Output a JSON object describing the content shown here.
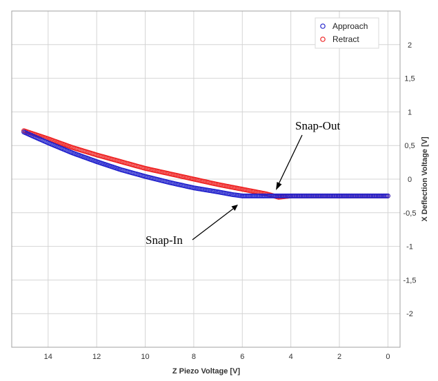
{
  "chart_data": {
    "type": "scatter",
    "xlabel": "Z Piezo Voltage [V]",
    "ylabel": "X Deflection Voltage [V]",
    "xlim": [
      15.5,
      -0.5
    ],
    "ylim": [
      -2.5,
      2.5
    ],
    "x_ticks": [
      14,
      12,
      10,
      8,
      6,
      4,
      2,
      0
    ],
    "x_tick_labels": [
      "14",
      "12",
      "10",
      "8",
      "6",
      "4",
      "2",
      "0"
    ],
    "y_ticks": [
      2,
      1.5,
      1,
      0.5,
      0,
      -0.5,
      -1,
      -1.5,
      -2
    ],
    "y_tick_labels": [
      "2",
      "1,5",
      "1",
      "0,5",
      "0",
      "-0,5",
      "-1",
      "-1,5",
      "-2"
    ],
    "grid": true,
    "y_axis_position": "right",
    "legend_position": "top-right",
    "series": [
      {
        "name": "Approach",
        "color": "#2222cc",
        "marker": "open-circle",
        "x": [
          15,
          14,
          13,
          12,
          11,
          10,
          9,
          8,
          7,
          6.4,
          6,
          5,
          4,
          3,
          2,
          1,
          0
        ],
        "y": [
          0.7,
          0.54,
          0.39,
          0.26,
          0.14,
          0.04,
          -0.05,
          -0.13,
          -0.19,
          -0.23,
          -0.25,
          -0.25,
          -0.25,
          -0.25,
          -0.25,
          -0.25,
          -0.25
        ]
      },
      {
        "name": "Retract",
        "color": "#ee2222",
        "marker": "open-circle",
        "x": [
          15,
          14,
          13,
          12,
          11,
          10,
          9,
          8,
          7,
          6,
          5,
          4.6,
          4.5,
          4,
          3,
          2,
          1,
          0
        ],
        "y": [
          0.72,
          0.6,
          0.47,
          0.36,
          0.26,
          0.16,
          0.08,
          0,
          -0.08,
          -0.15,
          -0.22,
          -0.26,
          -0.27,
          -0.25,
          -0.25,
          -0.25,
          -0.25,
          -0.25
        ]
      }
    ],
    "annotations": [
      {
        "text": "Snap-Out",
        "x": 4.6,
        "y": -0.26
      },
      {
        "text": "Snap-In",
        "x": 6.0,
        "y": -0.36
      }
    ]
  }
}
